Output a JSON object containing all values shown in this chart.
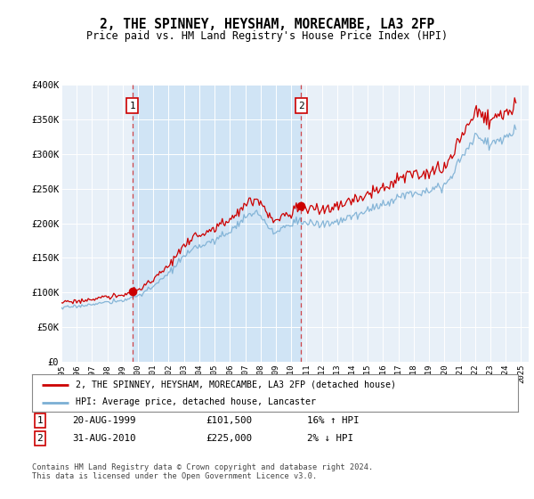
{
  "title": "2, THE SPINNEY, HEYSHAM, MORECAMBE, LA3 2FP",
  "subtitle": "Price paid vs. HM Land Registry's House Price Index (HPI)",
  "xlim_start": 1995.0,
  "xlim_end": 2025.5,
  "ylim_min": 0,
  "ylim_max": 400000,
  "yticks": [
    0,
    50000,
    100000,
    150000,
    200000,
    250000,
    300000,
    350000,
    400000
  ],
  "ytick_labels": [
    "£0",
    "£50K",
    "£100K",
    "£150K",
    "£200K",
    "£250K",
    "£300K",
    "£350K",
    "£400K"
  ],
  "transaction1_x": 1999.63,
  "transaction1_y": 101500,
  "transaction1_label": "1",
  "transaction1_date": "20-AUG-1999",
  "transaction1_price": "£101,500",
  "transaction1_hpi": "16% ↑ HPI",
  "transaction2_x": 2010.63,
  "transaction2_y": 225000,
  "transaction2_label": "2",
  "transaction2_date": "31-AUG-2010",
  "transaction2_price": "£225,000",
  "transaction2_hpi": "2% ↓ HPI",
  "red_line_color": "#cc0000",
  "blue_line_color": "#7bafd4",
  "shade_color": "#d0e4f5",
  "grid_color": "#c8d8e8",
  "plot_bg_color": "#e8f0f8",
  "legend1_label": "2, THE SPINNEY, HEYSHAM, MORECAMBE, LA3 2FP (detached house)",
  "legend2_label": "HPI: Average price, detached house, Lancaster",
  "footer": "Contains HM Land Registry data © Crown copyright and database right 2024.\nThis data is licensed under the Open Government Licence v3.0."
}
